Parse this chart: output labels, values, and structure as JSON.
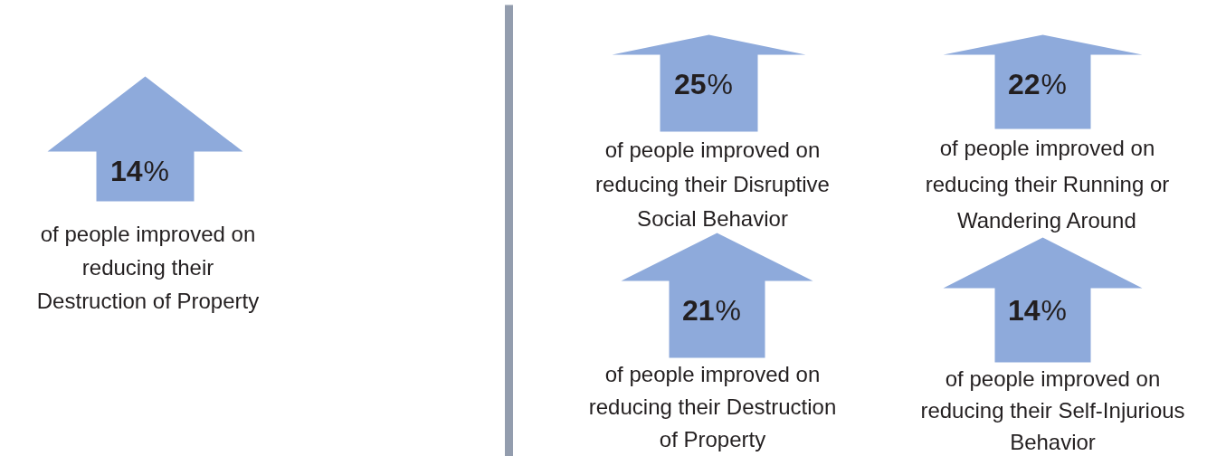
{
  "chart_data": {
    "type": "other",
    "categories": [
      "of people improved on\nreducing their\nDestruction of Property",
      "of people improved on\nreducing their Disruptive\nSocial Behavior",
      "of people improved on\nreducing their Running or\nWandering Around",
      "of people improved on\nreducing their Destruction\nof Property",
      "of people improved on\nreducing their Self-Injurious\nBehavior"
    ],
    "values": [
      14,
      25,
      22,
      21,
      14
    ],
    "value_labels": [
      "14%",
      "25%",
      "22%",
      "21%",
      "14%"
    ],
    "color": "#8eaadb"
  }
}
